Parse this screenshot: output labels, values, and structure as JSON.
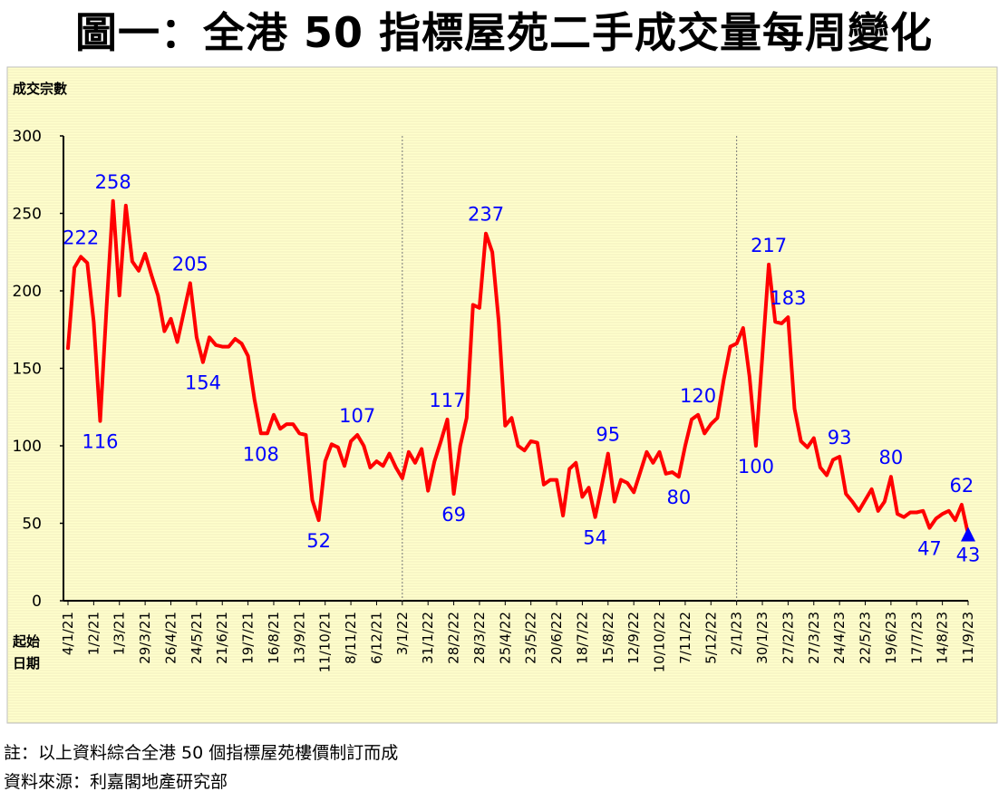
{
  "title": "圖一：全港 50 指標屋苑二手成交量每周變化",
  "note": "註：以上資料綜合全港 50 個指標屋苑樓價制訂而成",
  "source": "資料來源：利嘉閣地產研究部",
  "chart_data": {
    "type": "line",
    "ylabel": "成交宗數",
    "xlabel": "起始日期",
    "ylim": [
      0,
      300
    ],
    "y_ticks": [
      0,
      50,
      100,
      150,
      200,
      250,
      300
    ],
    "x_tick_labels": [
      "4/1/21",
      "1/2/21",
      "1/3/21",
      "29/3/21",
      "26/4/21",
      "24/5/21",
      "21/6/21",
      "19/7/21",
      "16/8/21",
      "13/9/21",
      "11/10/21",
      "8/11/21",
      "6/12/21",
      "3/1/22",
      "31/1/22",
      "28/2/22",
      "28/3/22",
      "25/4/22",
      "23/5/22",
      "20/6/22",
      "18/7/22",
      "15/8/22",
      "12/9/22",
      "10/10/22",
      "7/11/22",
      "5/12/22",
      "2/1/23",
      "30/1/23",
      "27/2/23",
      "27/3/23",
      "24/4/23",
      "22/5/23",
      "19/6/23",
      "17/7/23",
      "14/8/23",
      "11/9/23"
    ],
    "year_dividers_at": [
      "3/1/22",
      "2/1/23"
    ],
    "line_color": "#ff0000",
    "label_color": "#0000ff",
    "background_color": "#ffffcc",
    "grid": true,
    "series": [
      {
        "values": [
          163,
          215,
          222,
          218,
          180,
          116,
          190,
          258,
          197,
          255,
          219,
          213,
          224,
          210,
          197,
          174,
          182,
          167,
          186,
          205,
          170,
          154,
          170,
          165,
          164,
          164,
          169,
          166,
          158,
          130,
          108,
          108,
          120,
          111,
          114,
          114,
          108,
          107,
          65,
          52,
          90,
          101,
          99,
          87,
          103,
          107,
          100,
          86,
          90,
          87,
          95,
          86,
          79,
          96,
          89,
          98,
          71,
          90,
          103,
          117,
          69,
          100,
          118,
          191,
          189,
          237,
          225,
          180,
          113,
          118,
          100,
          97,
          103,
          102,
          75,
          78,
          78,
          55,
          85,
          89,
          67,
          73,
          54,
          74,
          95,
          64,
          78,
          76,
          70,
          83,
          96,
          89,
          96,
          82,
          83,
          80,
          100,
          117,
          120,
          108,
          114,
          118,
          143,
          164,
          166,
          176,
          145,
          100,
          158,
          217,
          180,
          179,
          183,
          124,
          103,
          99,
          105,
          86,
          81,
          91,
          93,
          69,
          64,
          58,
          65,
          72,
          58,
          64,
          80,
          56,
          54,
          57,
          57,
          58,
          47,
          53,
          56,
          58,
          52,
          62,
          43
        ],
        "value_labels": [
          {
            "index": 2,
            "text": "222"
          },
          {
            "index": 5,
            "text": "116"
          },
          {
            "index": 7,
            "text": "258"
          },
          {
            "index": 19,
            "text": "205"
          },
          {
            "index": 21,
            "text": "154"
          },
          {
            "index": 30,
            "text": "108"
          },
          {
            "index": 39,
            "text": "52"
          },
          {
            "index": 45,
            "text": "107"
          },
          {
            "index": 59,
            "text": "117"
          },
          {
            "index": 60,
            "text": "69"
          },
          {
            "index": 65,
            "text": "237"
          },
          {
            "index": 82,
            "text": "54"
          },
          {
            "index": 84,
            "text": "95"
          },
          {
            "index": 95,
            "text": "80"
          },
          {
            "index": 98,
            "text": "120"
          },
          {
            "index": 107,
            "text": "100"
          },
          {
            "index": 109,
            "text": "217"
          },
          {
            "index": 112,
            "text": "183"
          },
          {
            "index": 120,
            "text": "93"
          },
          {
            "index": 128,
            "text": "80"
          },
          {
            "index": 139,
            "text": "62"
          },
          {
            "index": 140,
            "text": "43"
          },
          {
            "index": 134,
            "text": "47"
          }
        ],
        "last_point_marker": "triangle"
      }
    ]
  }
}
